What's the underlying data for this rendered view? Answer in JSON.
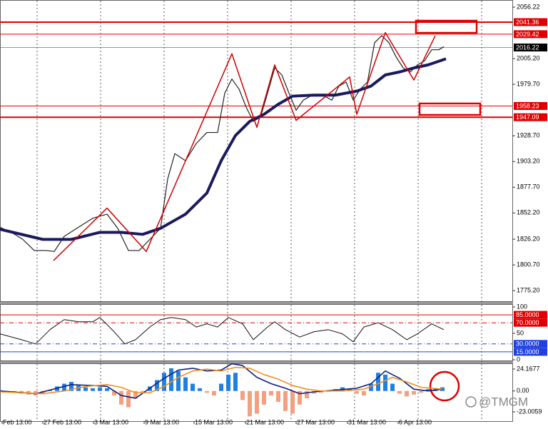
{
  "chart_data": [
    {
      "type": "line",
      "xlim": [
        0,
        71.8
      ],
      "ylim": [
        1764,
        2063.3
      ],
      "yticks": [
        2056.22,
        {
          "value": 2005.2,
          "label": "2005.20"
        },
        {
          "value": 1979.7,
          "label": "1979.70"
        },
        {
          "value": 1928.7,
          "label": "1928.70"
        },
        {
          "value": 1903.2,
          "label": "1903.20"
        },
        {
          "value": 1877.7,
          "label": "1877.70"
        },
        {
          "value": 1852.2,
          "label": "1852.20"
        },
        {
          "value": 1826.2,
          "label": "1826.20"
        },
        {
          "value": 1800.7,
          "label": "1800.70"
        },
        {
          "value": 1775.2,
          "label": "1775.20"
        }
      ],
      "levels": [
        {
          "value": 2041.36,
          "color": "#e00000",
          "width": 2
        },
        {
          "value": 2029.42,
          "color": "#e00000",
          "width": 1
        },
        {
          "value": 2016.22,
          "color": "#3050d0",
          "width": 0.7,
          "label_color": "#000000"
        },
        {
          "value": 1958.23,
          "color": "#e00000",
          "width": 1
        },
        {
          "value": 1947.09,
          "color": "#e00000",
          "width": 2
        }
      ],
      "series": [
        {
          "color": "#222222",
          "width": 1.2,
          "x": [
            0,
            1.6,
            3.2,
            4.8,
            6.4,
            7.6,
            9,
            11,
            13,
            15,
            16.5,
            18,
            19.5,
            21,
            22.5,
            23.5,
            24.5,
            26,
            27.5,
            29,
            30.5,
            31.5,
            32.5,
            33.5,
            34.5,
            35.5,
            36.5,
            37.5,
            38.5,
            39.5,
            40.5,
            41.5,
            42.5,
            43.5,
            44.5,
            45.5,
            46.5,
            47.5,
            48.5,
            49.5,
            50.5,
            51.5,
            52.5,
            53.5,
            54.5,
            55.5,
            56.5,
            57.5,
            58.5,
            59.5,
            60.5,
            61.5,
            62.2
          ],
          "values": [
            1838,
            1833,
            1826,
            1815,
            1815,
            1814,
            1829,
            1838,
            1847,
            1851,
            1837,
            1815,
            1815,
            1826,
            1837,
            1886,
            1911,
            1904,
            1921,
            1932,
            1932,
            1971,
            1985,
            1975,
            1957,
            1943,
            1947,
            1971,
            1996,
            1989,
            1971,
            1954,
            1964,
            1968,
            1968,
            1968,
            1964,
            1978,
            1982,
            1964,
            1975,
            1982,
            2021,
            2028,
            2021,
            2007,
            1996,
            1992,
            1999,
            2003,
            2014,
            2014,
            2017
          ]
        },
        {
          "color": "#1a1a5e",
          "width": 4,
          "x": [
            0,
            6,
            10,
            14,
            17,
            20,
            22.5,
            26,
            29,
            31,
            33,
            35,
            37,
            39,
            41,
            44,
            47,
            50,
            52,
            54,
            56,
            58,
            60,
            62.5
          ],
          "values": [
            1836,
            1826,
            1826,
            1833,
            1833,
            1831,
            1837,
            1851,
            1872,
            1904,
            1929,
            1943,
            1950,
            1960,
            1968,
            1969,
            1969,
            1973,
            1978,
            1989,
            1992,
            1996,
            1999,
            2005
          ]
        },
        {
          "color": "#d00000",
          "width": 1.5,
          "x": [
            7.5,
            15,
            20.5,
            32.5,
            36,
            38.5,
            41.5,
            49,
            50,
            54,
            58,
            61
          ],
          "values": [
            1805,
            1857,
            1814,
            2010,
            1937,
            1999,
            1944,
            1987,
            1950,
            2031,
            1984,
            2028
          ]
        }
      ]
    },
    {
      "type": "line",
      "xlim": [
        0,
        71.8
      ],
      "ylim": [
        0,
        100
      ],
      "yticks": [
        100,
        50,
        0
      ],
      "levels": [
        {
          "value": 85,
          "label": "85.0000",
          "color": "#e00000",
          "width": 1
        },
        {
          "value": 70,
          "label": "70.0000",
          "color": "#e00000",
          "width": 1,
          "dash": true
        },
        {
          "value": 30,
          "label": "30.0000",
          "color": "#2040e0",
          "width": 1,
          "dash": true
        },
        {
          "value": 15,
          "label": "15.0000",
          "color": "#2040e0",
          "width": 1
        }
      ],
      "series": [
        {
          "color": "#111111",
          "width": 1,
          "x": [
            0,
            3,
            5,
            7,
            9,
            11,
            13,
            14,
            16,
            17.5,
            19,
            21,
            22.5,
            24,
            26,
            27.5,
            29,
            30.5,
            32,
            34,
            35.5,
            37.5,
            38.5,
            40,
            42,
            44,
            46,
            48,
            49.5,
            51,
            53,
            55,
            57,
            58.5,
            60.5,
            62.2
          ],
          "values": [
            49,
            38,
            30,
            57,
            76,
            72,
            72,
            80,
            53,
            30,
            38,
            62,
            76,
            80,
            76,
            62,
            68,
            62,
            80,
            68,
            38,
            62,
            72,
            57,
            43,
            53,
            57,
            49,
            34,
            62,
            70,
            57,
            38,
            49,
            68,
            57
          ]
        }
      ]
    },
    {
      "type": "histogram-line",
      "xlim": [
        0,
        71.8
      ],
      "ylim": [
        -33.2,
        31.2
      ],
      "yticks": [
        24.1677,
        {
          "value": 0,
          "label": "0.00"
        },
        -23.0059
      ],
      "xticks": [
        {
          "value": 0.3,
          "label": "Feb 13:00"
        },
        {
          "value": 6,
          "label": "27 Feb 13:00"
        },
        {
          "value": 13.1,
          "label": "3 Mar 13:00"
        },
        {
          "value": 20.2,
          "label": "9 Mar 13:00"
        },
        {
          "value": 27.2,
          "label": "15 Mar 13:00"
        },
        {
          "value": 34.4,
          "label": "21 Mar 13:00"
        },
        {
          "value": 41.5,
          "label": "27 Mar 13:00"
        },
        {
          "value": 48.7,
          "label": "31 Mar 13:00"
        },
        {
          "value": 55.8,
          "label": "6 Apr 13:00"
        }
      ],
      "xgrid": [
        5.2,
        14.1,
        23,
        31.9,
        40.8,
        49.7,
        58.6,
        67.5
      ],
      "up_color": "#2080e0",
      "down_color": "#f4a080",
      "bars": {
        "x": [
          0,
          1,
          2,
          3,
          4,
          5,
          6,
          7,
          8,
          9,
          10,
          11,
          12,
          13,
          14,
          15,
          16,
          17,
          18,
          19,
          20,
          21,
          22,
          23,
          24,
          25,
          26,
          27,
          28,
          29,
          30,
          31,
          32,
          33,
          34,
          35,
          36,
          37,
          38,
          39,
          40,
          41,
          42,
          43,
          44,
          45,
          46,
          47,
          48,
          49,
          50,
          51,
          52,
          53,
          54,
          55,
          56,
          57,
          58,
          59,
          60,
          61,
          62
        ],
        "values": [
          -1,
          -1,
          -2,
          -3,
          -4,
          -5,
          -3,
          1,
          5,
          8,
          10,
          6,
          4,
          3,
          4,
          3,
          -5,
          -15,
          -18,
          -8,
          -2,
          5,
          12,
          20,
          25,
          22,
          15,
          8,
          3,
          -2,
          -5,
          8,
          18,
          20,
          -10,
          -28,
          -25,
          -15,
          -5,
          -12,
          -22,
          -25,
          -15,
          -8,
          -3,
          -2,
          -1,
          2,
          4,
          2,
          -3,
          -5,
          8,
          20,
          18,
          8,
          -3,
          -6,
          -4,
          -2,
          2,
          3,
          4
        ]
      },
      "series": [
        {
          "color": "#102080",
          "width": 1.6,
          "x": [
            0,
            5,
            8,
            10,
            13,
            15,
            17,
            19,
            21,
            23,
            25,
            27,
            29,
            31,
            32.5,
            34,
            36,
            38,
            40,
            42,
            44,
            47,
            50,
            52,
            54,
            56,
            58,
            60,
            62
          ],
          "values": [
            0,
            -3,
            3,
            7,
            6,
            5,
            -5,
            -8,
            3,
            14,
            23,
            25,
            22,
            23,
            30,
            28,
            15,
            8,
            3,
            -3,
            -1,
            1,
            3,
            8,
            22,
            14,
            2,
            0,
            2
          ]
        },
        {
          "color": "#f09020",
          "width": 1.6,
          "x": [
            0,
            6,
            9,
            12,
            15,
            17,
            19,
            21,
            23,
            25,
            27,
            29,
            31,
            33,
            35,
            37,
            39,
            41,
            43,
            45,
            48,
            51,
            53,
            55,
            57,
            59,
            62
          ],
          "values": [
            -1,
            -3,
            0,
            5,
            7,
            4,
            -2,
            -2,
            5,
            15,
            22,
            24,
            22,
            26,
            25,
            18,
            13,
            6,
            2,
            0,
            0,
            2,
            8,
            15,
            10,
            4,
            2
          ]
        }
      ]
    }
  ],
  "watermark": "@TMGM"
}
